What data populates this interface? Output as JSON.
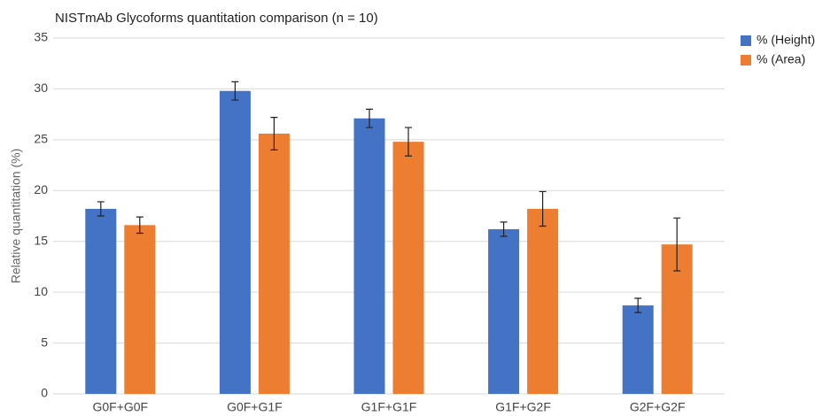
{
  "chart_data": {
    "type": "bar",
    "title": "NISTmAb Glycoforms quantitation comparison (n = 10)",
    "y_label": "Relative quantitation (%)",
    "categories": [
      "G0F+G0F",
      "G0F+G1F",
      "G1F+G1F",
      "G1F+G2F",
      "G2F+G2F"
    ],
    "series": [
      {
        "name": "% (Height)",
        "color": "#4472c4",
        "values": [
          18.2,
          29.8,
          27.1,
          16.2,
          8.7
        ],
        "errors": [
          0.7,
          0.9,
          0.9,
          0.7,
          0.7
        ]
      },
      {
        "name": "% (Area)",
        "color": "#ed7d31",
        "values": [
          16.6,
          25.6,
          24.8,
          18.2,
          14.7
        ],
        "errors": [
          0.8,
          1.6,
          1.4,
          1.7,
          2.6
        ]
      }
    ],
    "ylim": [
      0,
      35
    ],
    "yticks": [
      0,
      5,
      10,
      15,
      20,
      25,
      30,
      35
    ],
    "grid": true,
    "legend": "top-right"
  }
}
